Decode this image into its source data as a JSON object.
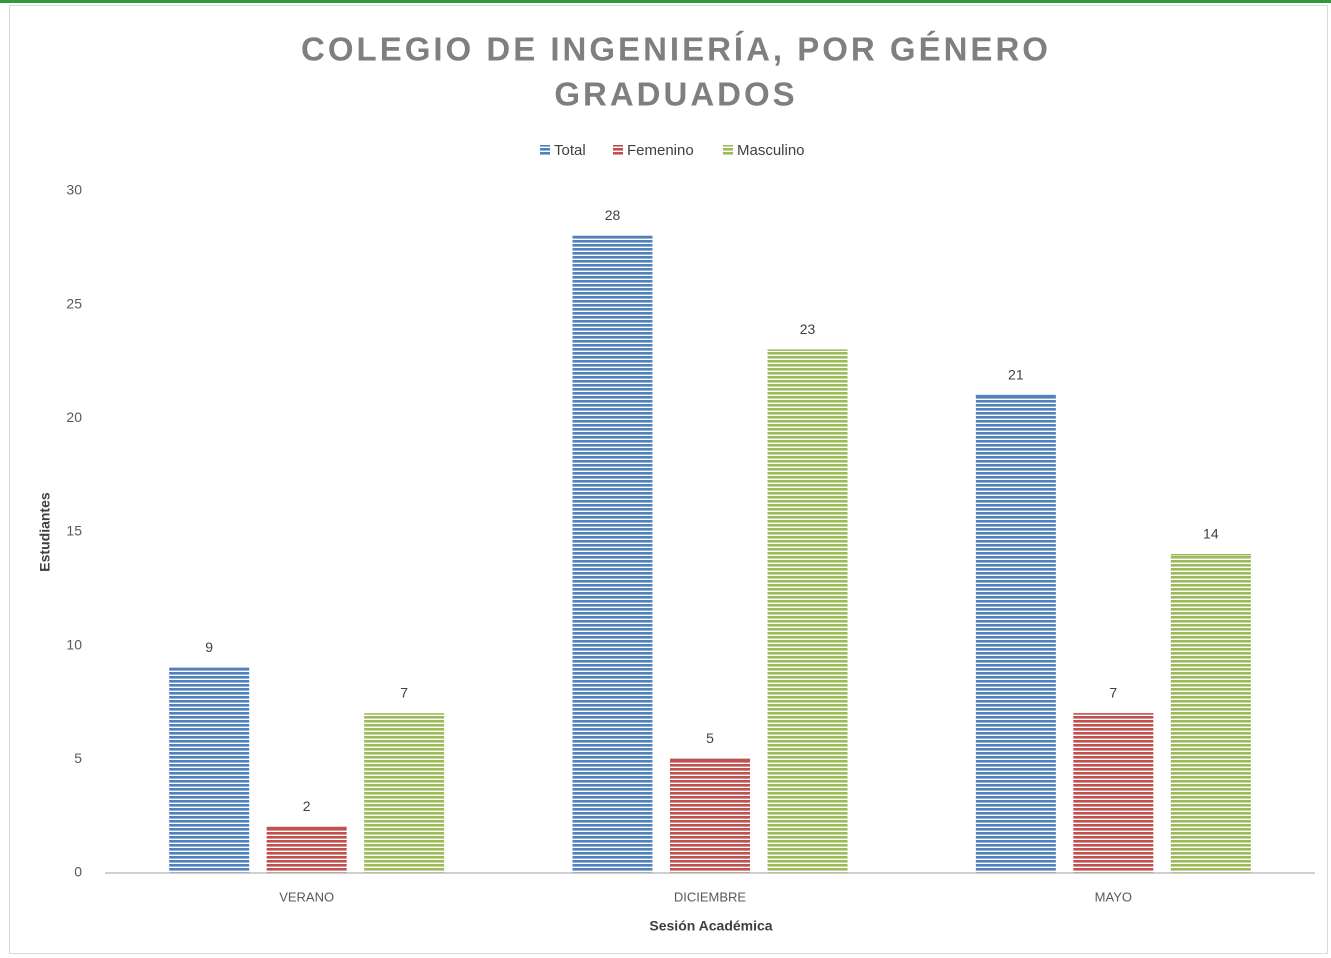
{
  "chart_data": {
    "type": "bar",
    "title": [
      "COLEGIO DE INGENIERÍA, POR GÉNERO",
      "GRADUADOS"
    ],
    "x_label": "Sesión Académica",
    "y_label": "Estudiantes",
    "categories": [
      "VERANO",
      "DICIEMBRE",
      "MAYO"
    ],
    "series": [
      {
        "name": "Total",
        "color": "#4f81bd",
        "values": [
          9,
          28,
          21
        ]
      },
      {
        "name": "Femenino",
        "color": "#c0504d",
        "values": [
          2,
          5,
          7
        ]
      },
      {
        "name": "Masculino",
        "color": "#9bbb59",
        "values": [
          7,
          23,
          14
        ]
      }
    ],
    "ylim": [
      0,
      30
    ],
    "yticks": [
      0,
      5,
      10,
      15,
      20,
      25,
      30
    ],
    "grid": false,
    "legend": "top"
  }
}
